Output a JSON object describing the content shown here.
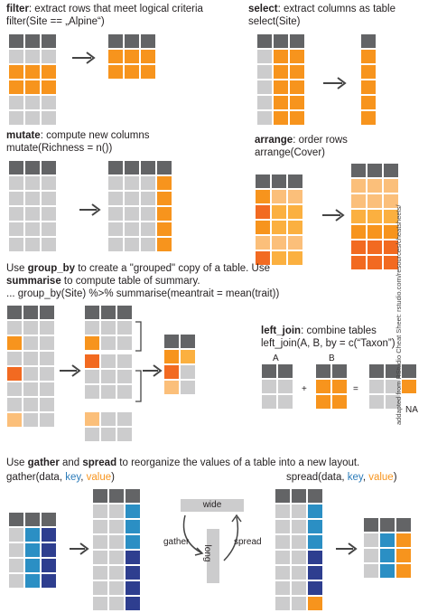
{
  "colors": {
    "dark": "#636466",
    "gray": "#cccccd",
    "orange": "#f7941d",
    "orange_dark": "#f26a21",
    "orange_light": "#fbbf7a",
    "yellow": "#fbb040",
    "blue": "#2b8fc4",
    "navy": "#2e3e8f",
    "arrow": "#444444"
  },
  "filter": {
    "kw": "filter",
    "desc": ": extract rows that meet logical criteria",
    "code": "filter(Site == „Alpine“)"
  },
  "select": {
    "kw": "select",
    "desc": ": extract columns as table",
    "code": "select(Site)"
  },
  "mutate": {
    "kw": "mutate",
    "desc": ": compute new columns",
    "code": "mutate(Richness = n())"
  },
  "arrange": {
    "kw": "arrange",
    "desc": ": order rows",
    "code": "arrange(Cover)"
  },
  "group": {
    "l1a": "Use ",
    "l1kw": "group_by",
    "l1b": " to create a \"grouped\" copy of a table. Use",
    "l2kw": "summarise",
    "l2b": " to compute table of summary.",
    "l3": "... group_by(Site) %>% summarise(meantrait = mean(trait))"
  },
  "left_join": {
    "kw": "left_join",
    "desc": ": combine tables",
    "code": "left_join(A, B, by = c(“Taxon”)",
    "a": "A",
    "b": "B",
    "plus": "+",
    "eq": "=",
    "na": "NA"
  },
  "gather": {
    "l1a": "Use ",
    "l1kw1": "gather",
    "l1b": " and ",
    "l1kw2": "spread",
    "l1c": " to reorganize the values of a table into a new layout.",
    "g_a": "gather(data, ",
    "g_key": "key",
    "g_sep": ", ",
    "g_val": "value",
    "g_end": ")",
    "s_a": "spread(data, ",
    "s_key": "key",
    "s_sep": ", ",
    "s_val": "value",
    "s_end": ")",
    "wide": "wide",
    "long": "long",
    "gather_lbl": "gather",
    "spread_lbl": "spread"
  },
  "credit": "addapted from RStudio Cheat Sheet: rstudio.com/resources/cheatsheets/"
}
